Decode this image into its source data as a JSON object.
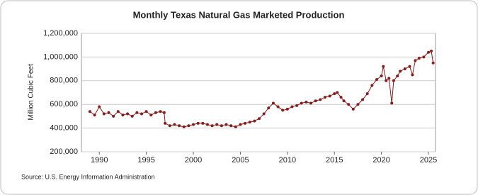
{
  "chart_data": {
    "type": "line",
    "title": "Monthly Texas Natural Gas Marketed Production",
    "y_label": "Million Cubic Feet",
    "source": "Source: U.S. Energy Information Administration",
    "color": "#8b1a1a",
    "grid": true,
    "xlim": [
      1988.1,
      2025.75
    ],
    "xticks": [
      1990,
      1995,
      2000,
      2005,
      2010,
      2015,
      2020,
      2025
    ],
    "ylim": [
      200000,
      1200000
    ],
    "yticks": [
      {
        "value": 200000,
        "label": "200,000"
      },
      {
        "value": 400000,
        "label": "400,000"
      },
      {
        "value": 600000,
        "label": "600,000"
      },
      {
        "value": 800000,
        "label": "800,000"
      },
      {
        "value": 1000000,
        "label": "1,000,000"
      },
      {
        "value": 1200000,
        "label": "1,200,000"
      }
    ],
    "x": [
      1989.0,
      1989.5,
      1990.0,
      1990.5,
      1991.0,
      1991.5,
      1992.0,
      1992.5,
      1993.0,
      1993.5,
      1994.0,
      1994.5,
      1995.0,
      1995.5,
      1996.0,
      1996.5,
      1996.9,
      1997.0,
      1997.5,
      1998.0,
      1998.5,
      1999.0,
      1999.5,
      2000.0,
      2000.5,
      2001.0,
      2001.5,
      2002.0,
      2002.5,
      2003.0,
      2003.5,
      2004.0,
      2004.5,
      2005.0,
      2005.5,
      2006.0,
      2006.5,
      2007.0,
      2007.5,
      2008.0,
      2008.5,
      2009.0,
      2009.5,
      2010.0,
      2010.5,
      2011.0,
      2011.5,
      2012.0,
      2012.5,
      2013.0,
      2013.5,
      2014.0,
      2014.5,
      2015.0,
      2015.3,
      2015.7,
      2016.0,
      2016.5,
      2017.0,
      2017.5,
      2018.0,
      2018.5,
      2019.0,
      2019.5,
      2020.0,
      2020.2,
      2020.5,
      2020.8,
      2021.1,
      2021.3,
      2021.7,
      2022.0,
      2022.5,
      2023.0,
      2023.3,
      2023.6,
      2024.0,
      2024.5,
      2025.0,
      2025.3,
      2025.5
    ],
    "values": [
      540000,
      510000,
      580000,
      520000,
      530000,
      500000,
      540000,
      510000,
      520000,
      500000,
      530000,
      520000,
      540000,
      510000,
      530000,
      540000,
      530000,
      440000,
      420000,
      430000,
      420000,
      410000,
      420000,
      430000,
      440000,
      440000,
      430000,
      420000,
      430000,
      420000,
      430000,
      420000,
      410000,
      430000,
      440000,
      450000,
      460000,
      480000,
      520000,
      570000,
      610000,
      580000,
      550000,
      560000,
      580000,
      590000,
      610000,
      620000,
      610000,
      630000,
      640000,
      660000,
      670000,
      690000,
      700000,
      660000,
      630000,
      600000,
      560000,
      600000,
      640000,
      690000,
      760000,
      810000,
      840000,
      920000,
      800000,
      820000,
      610000,
      800000,
      840000,
      880000,
      900000,
      920000,
      850000,
      970000,
      990000,
      1000000,
      1040000,
      1050000,
      950000
    ]
  }
}
